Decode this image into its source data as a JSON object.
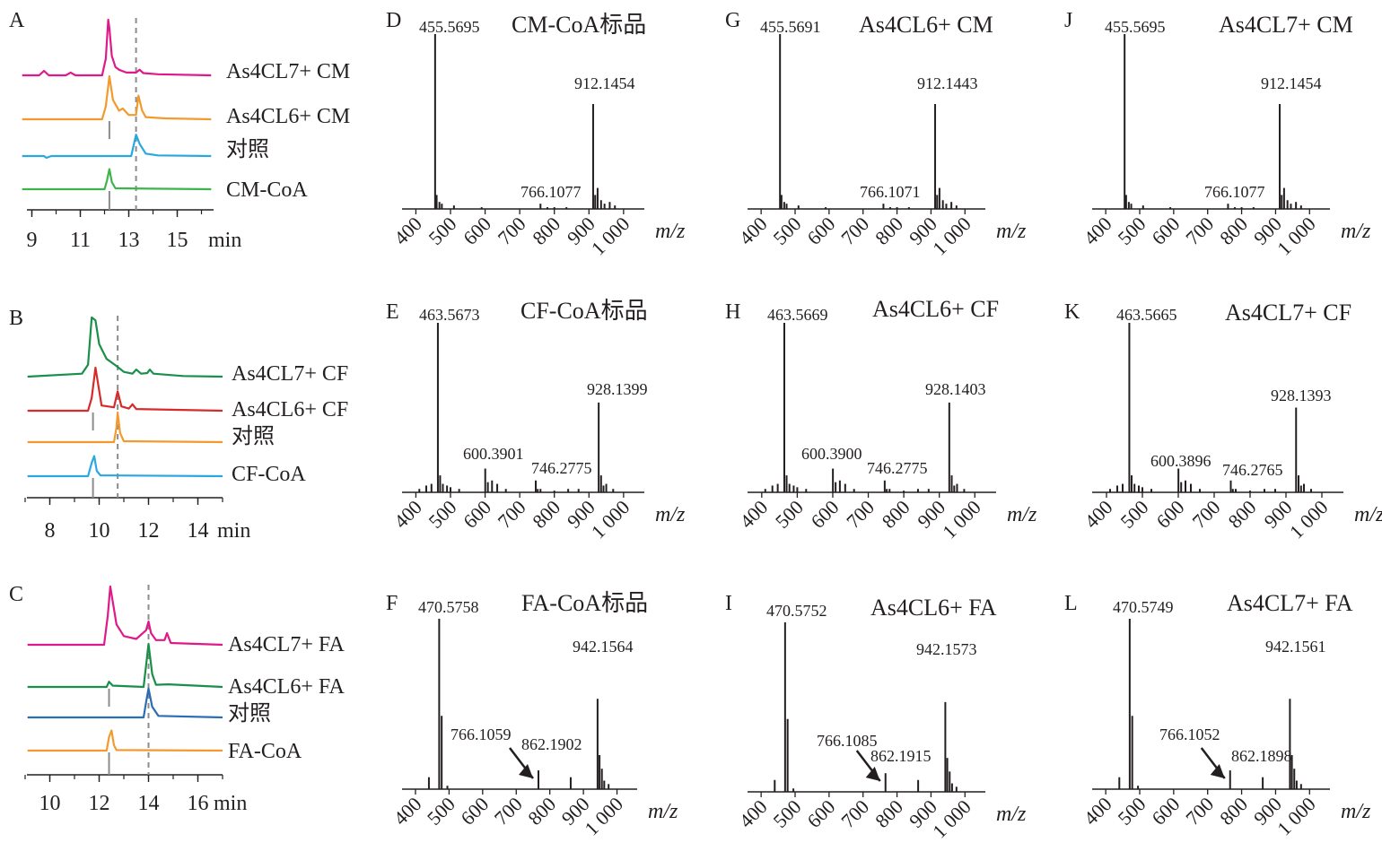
{
  "colors": {
    "text": "#231f20",
    "highlight": "#d7191c",
    "magenta": "#e0198a",
    "orange": "#f29a2e",
    "cyan": "#29a8df",
    "green": "#3cb44a",
    "dark_green": "#1a8f4a",
    "red": "#d62b2b",
    "blue": "#2a6db5",
    "marker_solid": "#8c8c8c",
    "marker_dashed": "#8c8c8c"
  },
  "chart_data": [
    {
      "panel": "A",
      "type": "line",
      "xlabel": "min",
      "xticks": [
        9,
        11,
        13,
        15
      ],
      "xlim": [
        8.5,
        16.5
      ],
      "solid_marker_x": 12.2,
      "dashed_marker_x": 13.3,
      "series": [
        {
          "name": "As4CL7+ CM",
          "color": "#e0198a",
          "x": [
            8.6,
            9.3,
            9.5,
            9.7,
            10.4,
            10.6,
            10.8,
            11.9,
            12.05,
            12.15,
            12.2,
            12.3,
            12.45,
            12.6,
            12.9,
            13.3,
            13.45,
            13.6,
            14.2,
            16.4
          ],
          "y": [
            0,
            0,
            0.08,
            0,
            0,
            0.05,
            0,
            0,
            0.3,
            1.0,
            0.85,
            0.35,
            0.15,
            0.1,
            0.05,
            0.05,
            0.1,
            0.04,
            0.02,
            0
          ]
        },
        {
          "name": "As4CL6+ CM",
          "color": "#f29a2e",
          "x": [
            8.6,
            11.9,
            12.05,
            12.2,
            12.35,
            12.6,
            12.75,
            13.0,
            13.3,
            13.4,
            13.55,
            13.7,
            14.5,
            16.4
          ],
          "y": [
            0,
            0,
            0.3,
            1.0,
            0.45,
            0.2,
            0.25,
            0.1,
            0.1,
            0.55,
            0.2,
            0.05,
            0.02,
            0
          ]
        },
        {
          "name": "对照",
          "color": "#29a8df",
          "x": [
            8.6,
            9.5,
            9.6,
            9.8,
            13.1,
            13.3,
            13.45,
            13.7,
            14.2,
            16.4
          ],
          "y": [
            0,
            0,
            -0.06,
            0,
            0,
            0.7,
            0.4,
            0.08,
            0.02,
            0
          ]
        },
        {
          "name": "CM-CoA",
          "color": "#3cb44a",
          "x": [
            8.6,
            12.0,
            12.1,
            12.2,
            12.3,
            12.45,
            16.4
          ],
          "y": [
            0,
            0,
            0.3,
            0.7,
            0.25,
            0.03,
            0
          ]
        }
      ]
    },
    {
      "panel": "B",
      "type": "line",
      "xlabel": "min",
      "xticks": [
        8,
        10,
        12,
        14
      ],
      "xlim": [
        7,
        15
      ],
      "solid_marker_x": 9.75,
      "dashed_marker_x": 10.75,
      "series": [
        {
          "name": "As4CL7+ CF",
          "color": "#1a8f4a",
          "x": [
            7.1,
            9.3,
            9.55,
            9.7,
            9.85,
            10.0,
            10.3,
            10.7,
            11.0,
            11.35,
            11.5,
            11.7,
            11.95,
            12.05,
            12.2,
            13.4,
            15.0
          ],
          "y": [
            0,
            0.05,
            0.2,
            1.0,
            0.95,
            0.55,
            0.3,
            0.18,
            0.08,
            0.05,
            0.12,
            0.05,
            0.06,
            0.12,
            0.05,
            0.01,
            0
          ]
        },
        {
          "name": "As4CL6+ CF",
          "color": "#d62b2b",
          "x": [
            7.1,
            9.55,
            9.7,
            9.85,
            10.1,
            10.6,
            10.75,
            10.9,
            11.2,
            11.35,
            11.5,
            15.0
          ],
          "y": [
            0,
            0,
            0.3,
            1.0,
            0.12,
            0.08,
            0.45,
            0.1,
            0.05,
            0.15,
            0.04,
            0
          ]
        },
        {
          "name": "对照",
          "color": "#f29a2e",
          "x": [
            7.1,
            10.6,
            10.7,
            10.75,
            10.85,
            11.0,
            15.0
          ],
          "y": [
            0,
            0,
            0.5,
            1.0,
            0.3,
            0.03,
            0
          ]
        },
        {
          "name": "CF-CoA",
          "color": "#29a8df",
          "x": [
            7.1,
            9.55,
            9.7,
            9.8,
            9.9,
            10.05,
            15.0
          ],
          "y": [
            0,
            0,
            0.5,
            0.75,
            0.2,
            0.03,
            0
          ]
        }
      ]
    },
    {
      "panel": "C",
      "type": "line",
      "xlabel": "min",
      "xticks": [
        10,
        12,
        14,
        16
      ],
      "xlim": [
        9,
        17
      ],
      "solid_marker_x": 12.4,
      "dashed_marker_x": 14.0,
      "series": [
        {
          "name": "As4CL7+ FA",
          "color": "#e0198a",
          "x": [
            9.1,
            12.2,
            12.35,
            12.45,
            12.7,
            13.0,
            13.5,
            13.9,
            14.0,
            14.1,
            14.3,
            14.65,
            14.75,
            14.9,
            17.0
          ],
          "y": [
            0,
            0,
            0.5,
            1.0,
            0.35,
            0.15,
            0.1,
            0.25,
            0.4,
            0.2,
            0.08,
            0.08,
            0.2,
            0.03,
            0
          ]
        },
        {
          "name": "As4CL6+ FA",
          "color": "#1a8f4a",
          "x": [
            9.1,
            12.3,
            12.4,
            12.55,
            13.8,
            13.9,
            14.0,
            14.15,
            14.3,
            14.8,
            17.0
          ],
          "y": [
            0,
            0,
            0.12,
            0.03,
            0,
            0.5,
            1.0,
            0.3,
            0.05,
            0.06,
            0
          ]
        },
        {
          "name": "对照",
          "color": "#2a6db5",
          "x": [
            9.1,
            13.8,
            13.9,
            14.0,
            14.15,
            14.4,
            17.0
          ],
          "y": [
            0,
            0,
            0.5,
            0.95,
            0.35,
            0.05,
            0
          ]
        },
        {
          "name": "FA-CoA",
          "color": "#f29a2e",
          "x": [
            9.1,
            12.3,
            12.4,
            12.5,
            12.6,
            12.7,
            17.0
          ],
          "y": [
            0,
            0,
            0.5,
            0.75,
            0.2,
            0.02,
            0
          ]
        }
      ]
    },
    {
      "panel": "D",
      "type": "bar",
      "title": "CM-CoA标品",
      "xlabel": "m/z",
      "xticks": [
        "400",
        "500",
        "600",
        "700",
        "800",
        "900",
        "1 000"
      ],
      "xlim": [
        360,
        1060
      ],
      "mz": [
        455.5695,
        460,
        468,
        475,
        510,
        590,
        760,
        780,
        800,
        835,
        912.1454,
        918,
        925,
        935,
        945,
        960,
        975
      ],
      "intensity": [
        1.0,
        0.08,
        0.04,
        0.03,
        0.02,
        0.01,
        0.03,
        0.01,
        0.01,
        0.01,
        0.6,
        0.08,
        0.12,
        0.05,
        0.03,
        0.04,
        0.02
      ],
      "labels": [
        {
          "text": "455.5695",
          "mz": 455.5695,
          "red": false
        },
        {
          "text": "912.1454",
          "mz": 912.1454,
          "red": true
        },
        {
          "text": "766.1077",
          "mz": 766.1077,
          "red": false
        }
      ]
    },
    {
      "panel": "G",
      "type": "bar",
      "title": "As4CL6+ CM",
      "xlabel": "m/z",
      "xticks": [
        "400",
        "500",
        "600",
        "700",
        "800",
        "900",
        "1 000"
      ],
      "xlim": [
        360,
        1060
      ],
      "mz": [
        455.5691,
        460,
        468,
        475,
        510,
        590,
        760,
        780,
        800,
        835,
        912.1443,
        918,
        925,
        935,
        945,
        960,
        975
      ],
      "intensity": [
        1.0,
        0.08,
        0.04,
        0.03,
        0.02,
        0.01,
        0.03,
        0.01,
        0.01,
        0.01,
        0.6,
        0.08,
        0.12,
        0.05,
        0.03,
        0.04,
        0.02
      ],
      "labels": [
        {
          "text": "455.5691",
          "mz": 455.5691,
          "red": false
        },
        {
          "text": "912.1443",
          "mz": 912.1443,
          "red": true
        },
        {
          "text": "766.1071",
          "mz": 766.1071,
          "red": false
        }
      ]
    },
    {
      "panel": "J",
      "type": "bar",
      "title": "As4CL7+ CM",
      "xlabel": "m/z",
      "xticks": [
        "400",
        "500",
        "600",
        "700",
        "800",
        "900",
        "1 000"
      ],
      "xlim": [
        360,
        1060
      ],
      "mz": [
        455.5695,
        460,
        468,
        475,
        510,
        590,
        760,
        780,
        800,
        835,
        912.1454,
        918,
        925,
        935,
        945,
        960,
        975
      ],
      "intensity": [
        1.0,
        0.08,
        0.04,
        0.03,
        0.02,
        0.01,
        0.03,
        0.01,
        0.01,
        0.01,
        0.6,
        0.08,
        0.12,
        0.05,
        0.03,
        0.04,
        0.02
      ],
      "labels": [
        {
          "text": "455.5695",
          "mz": 455.5695,
          "red": false
        },
        {
          "text": "912.1454",
          "mz": 912.1454,
          "red": true
        },
        {
          "text": "766.1077",
          "mz": 766.1077,
          "red": false
        }
      ]
    },
    {
      "panel": "E",
      "type": "bar",
      "title": "CF-CoA标品",
      "xlabel": "m/z",
      "xticks": [
        "400",
        "500",
        "600",
        "700",
        "800",
        "900",
        "1 000"
      ],
      "xlim": [
        360,
        1060
      ],
      "mz": [
        410,
        430,
        445,
        463.5673,
        470,
        478,
        490,
        500,
        525,
        600.3901,
        608,
        620,
        635,
        660,
        746.2775,
        752,
        760,
        800,
        840,
        870,
        928.1399,
        935,
        942,
        950,
        970
      ],
      "intensity": [
        0.02,
        0.04,
        0.05,
        1.0,
        0.1,
        0.05,
        0.04,
        0.03,
        0.02,
        0.14,
        0.06,
        0.07,
        0.05,
        0.02,
        0.07,
        0.02,
        0.02,
        0.01,
        0.02,
        0.02,
        0.53,
        0.1,
        0.04,
        0.05,
        0.02
      ],
      "labels": [
        {
          "text": "463.5673",
          "mz": 463.5673,
          "red": false
        },
        {
          "text": "928.1399",
          "mz": 928.1399,
          "red": true
        },
        {
          "text": "600.3901",
          "mz": 600.3901,
          "red": false
        },
        {
          "text": "746.2775",
          "mz": 746.2775,
          "red": false
        }
      ]
    },
    {
      "panel": "H",
      "type": "bar",
      "title": "As4CL6+ CF",
      "xlabel": "m/z",
      "xticks": [
        "400",
        "500",
        "600",
        "700",
        "800",
        "900",
        "1 000"
      ],
      "xlim": [
        360,
        1060
      ],
      "mz": [
        410,
        430,
        445,
        463.5669,
        470,
        478,
        490,
        500,
        525,
        600.39,
        608,
        620,
        635,
        660,
        746.2775,
        752,
        760,
        800,
        840,
        870,
        928.1403,
        935,
        942,
        950,
        970
      ],
      "intensity": [
        0.02,
        0.04,
        0.05,
        1.0,
        0.1,
        0.05,
        0.04,
        0.03,
        0.02,
        0.14,
        0.06,
        0.07,
        0.05,
        0.02,
        0.07,
        0.02,
        0.02,
        0.01,
        0.02,
        0.02,
        0.53,
        0.1,
        0.04,
        0.05,
        0.02
      ],
      "labels": [
        {
          "text": "463.5669",
          "mz": 463.5669,
          "red": false
        },
        {
          "text": "928.1403",
          "mz": 928.1403,
          "red": true
        },
        {
          "text": "600.3900",
          "mz": 600.39,
          "red": false
        },
        {
          "text": "746.2775",
          "mz": 746.2775,
          "red": false
        }
      ]
    },
    {
      "panel": "K",
      "type": "bar",
      "title": "As4CL7+ CF",
      "xlabel": "m/z",
      "xticks": [
        "400",
        "500",
        "600",
        "700",
        "800",
        "900",
        "1 000"
      ],
      "xlim": [
        360,
        1060
      ],
      "mz": [
        410,
        430,
        445,
        463.5665,
        470,
        478,
        490,
        500,
        525,
        600.3896,
        608,
        620,
        635,
        660,
        746.2765,
        752,
        760,
        800,
        840,
        870,
        928.1393,
        935,
        942,
        950,
        970
      ],
      "intensity": [
        0.02,
        0.04,
        0.05,
        1.0,
        0.1,
        0.05,
        0.04,
        0.03,
        0.02,
        0.14,
        0.06,
        0.07,
        0.05,
        0.02,
        0.07,
        0.02,
        0.02,
        0.01,
        0.02,
        0.02,
        0.5,
        0.1,
        0.04,
        0.05,
        0.02
      ],
      "labels": [
        {
          "text": "463.5665",
          "mz": 463.5665,
          "red": false
        },
        {
          "text": "928.1393",
          "mz": 928.1393,
          "red": true
        },
        {
          "text": "600.3896",
          "mz": 600.3896,
          "red": false
        },
        {
          "text": "746.2765",
          "mz": 746.2765,
          "red": false
        }
      ]
    },
    {
      "panel": "F",
      "type": "bar",
      "title": "FA-CoA标品",
      "xlabel": "m/z",
      "xticks": [
        "400",
        "500",
        "600",
        "700",
        "800",
        "900",
        "1 000"
      ],
      "xlim": [
        360,
        1060
      ],
      "mz": [
        440,
        470.5758,
        478,
        495,
        766.1059,
        862.1902,
        942.1564,
        948,
        955,
        962,
        975
      ],
      "intensity": [
        0.07,
        1.0,
        0.43,
        0.02,
        0.11,
        0.07,
        0.53,
        0.2,
        0.12,
        0.05,
        0.03
      ],
      "labels": [
        {
          "text": "470.5758",
          "mz": 470.5758,
          "red": false
        },
        {
          "text": "942.1564",
          "mz": 942.1564,
          "red": true
        },
        {
          "text": "766.1059",
          "mz": 766.1059,
          "red": false
        },
        {
          "text": "862.1902",
          "mz": 862.1902,
          "red": false
        }
      ],
      "arrow_target_mz": 766.1059
    },
    {
      "panel": "I",
      "type": "bar",
      "title": "As4CL6+ FA",
      "xlabel": "m/z",
      "xticks": [
        "400",
        "500",
        "600",
        "700",
        "800",
        "900",
        "1 000"
      ],
      "xlim": [
        360,
        1060
      ],
      "mz": [
        440,
        470.5752,
        478,
        495,
        766.1085,
        862.1915,
        942.1573,
        948,
        955,
        962,
        975
      ],
      "intensity": [
        0.07,
        1.0,
        0.43,
        0.02,
        0.11,
        0.07,
        0.53,
        0.2,
        0.12,
        0.05,
        0.03
      ],
      "labels": [
        {
          "text": "470.5752",
          "mz": 470.5752,
          "red": false
        },
        {
          "text": "942.1573",
          "mz": 942.1573,
          "red": true
        },
        {
          "text": "766.1085",
          "mz": 766.1085,
          "red": false
        },
        {
          "text": "862.1915",
          "mz": 862.1915,
          "red": false
        }
      ],
      "arrow_target_mz": 766.1085
    },
    {
      "panel": "L",
      "type": "bar",
      "title": "As4CL7+ FA",
      "xlabel": "m/z",
      "xticks": [
        "400",
        "500",
        "600",
        "700",
        "800",
        "900",
        "1 000"
      ],
      "xlim": [
        360,
        1060
      ],
      "mz": [
        440,
        470.5749,
        478,
        495,
        766.1052,
        862.1898,
        942.1561,
        948,
        955,
        962,
        975
      ],
      "intensity": [
        0.07,
        1.0,
        0.43,
        0.02,
        0.11,
        0.07,
        0.53,
        0.2,
        0.12,
        0.05,
        0.03
      ],
      "labels": [
        {
          "text": "470.5749",
          "mz": 470.5749,
          "red": false
        },
        {
          "text": "942.1561",
          "mz": 942.1561,
          "red": true
        },
        {
          "text": "766.1052",
          "mz": 766.1052,
          "red": false
        },
        {
          "text": "862.1898",
          "mz": 862.1898,
          "red": false
        }
      ],
      "arrow_target_mz": 766.1052
    }
  ]
}
